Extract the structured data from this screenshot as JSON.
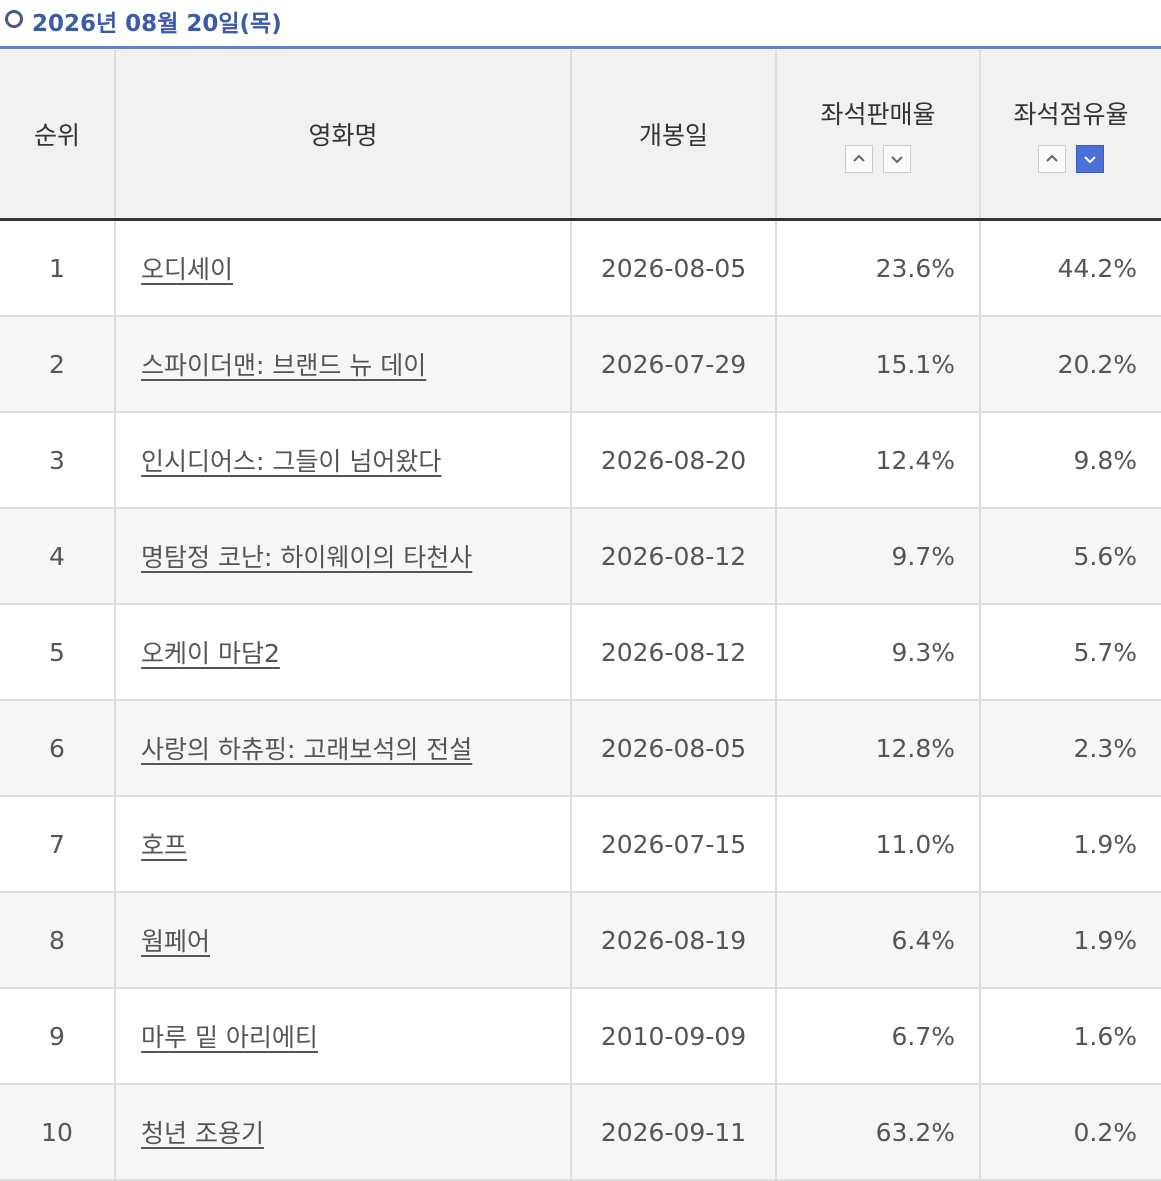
{
  "header": {
    "title": "2026년 08월 20일(목)"
  },
  "table": {
    "columns": [
      "순위",
      "영화명",
      "개봉일",
      "좌석판매율",
      "좌석점유율"
    ],
    "rows": [
      [
        1,
        "오디세이",
        "2026-08-05",
        "23.6%",
        "44.2%"
      ],
      [
        2,
        "스파이더맨: 브랜드 뉴 데이",
        "2026-07-29",
        "15.1%",
        "20.2%"
      ],
      [
        3,
        "인시디어스: 그들이 넘어왔다",
        "2026-08-20",
        "12.4%",
        "9.8%"
      ],
      [
        4,
        "명탐정 코난: 하이웨이의 타천사",
        "2026-08-12",
        "9.7%",
        "5.6%"
      ],
      [
        5,
        "오케이 마담2",
        "2026-08-12",
        "9.3%",
        "5.7%"
      ],
      [
        6,
        "사랑의 하츄핑: 고래보석의 전설",
        "2026-08-05",
        "12.8%",
        "2.3%"
      ],
      [
        7,
        "호프",
        "2026-07-15",
        "11.0%",
        "1.9%"
      ],
      [
        8,
        "웜페어",
        "2026-08-19",
        "6.4%",
        "1.9%"
      ],
      [
        9,
        "마루 밑 아리에티",
        "2010-09-09",
        "6.7%",
        "1.6%"
      ],
      [
        10,
        "청년 조용기",
        "2026-09-11",
        "63.2%",
        "0.2%"
      ]
    ]
  }
}
